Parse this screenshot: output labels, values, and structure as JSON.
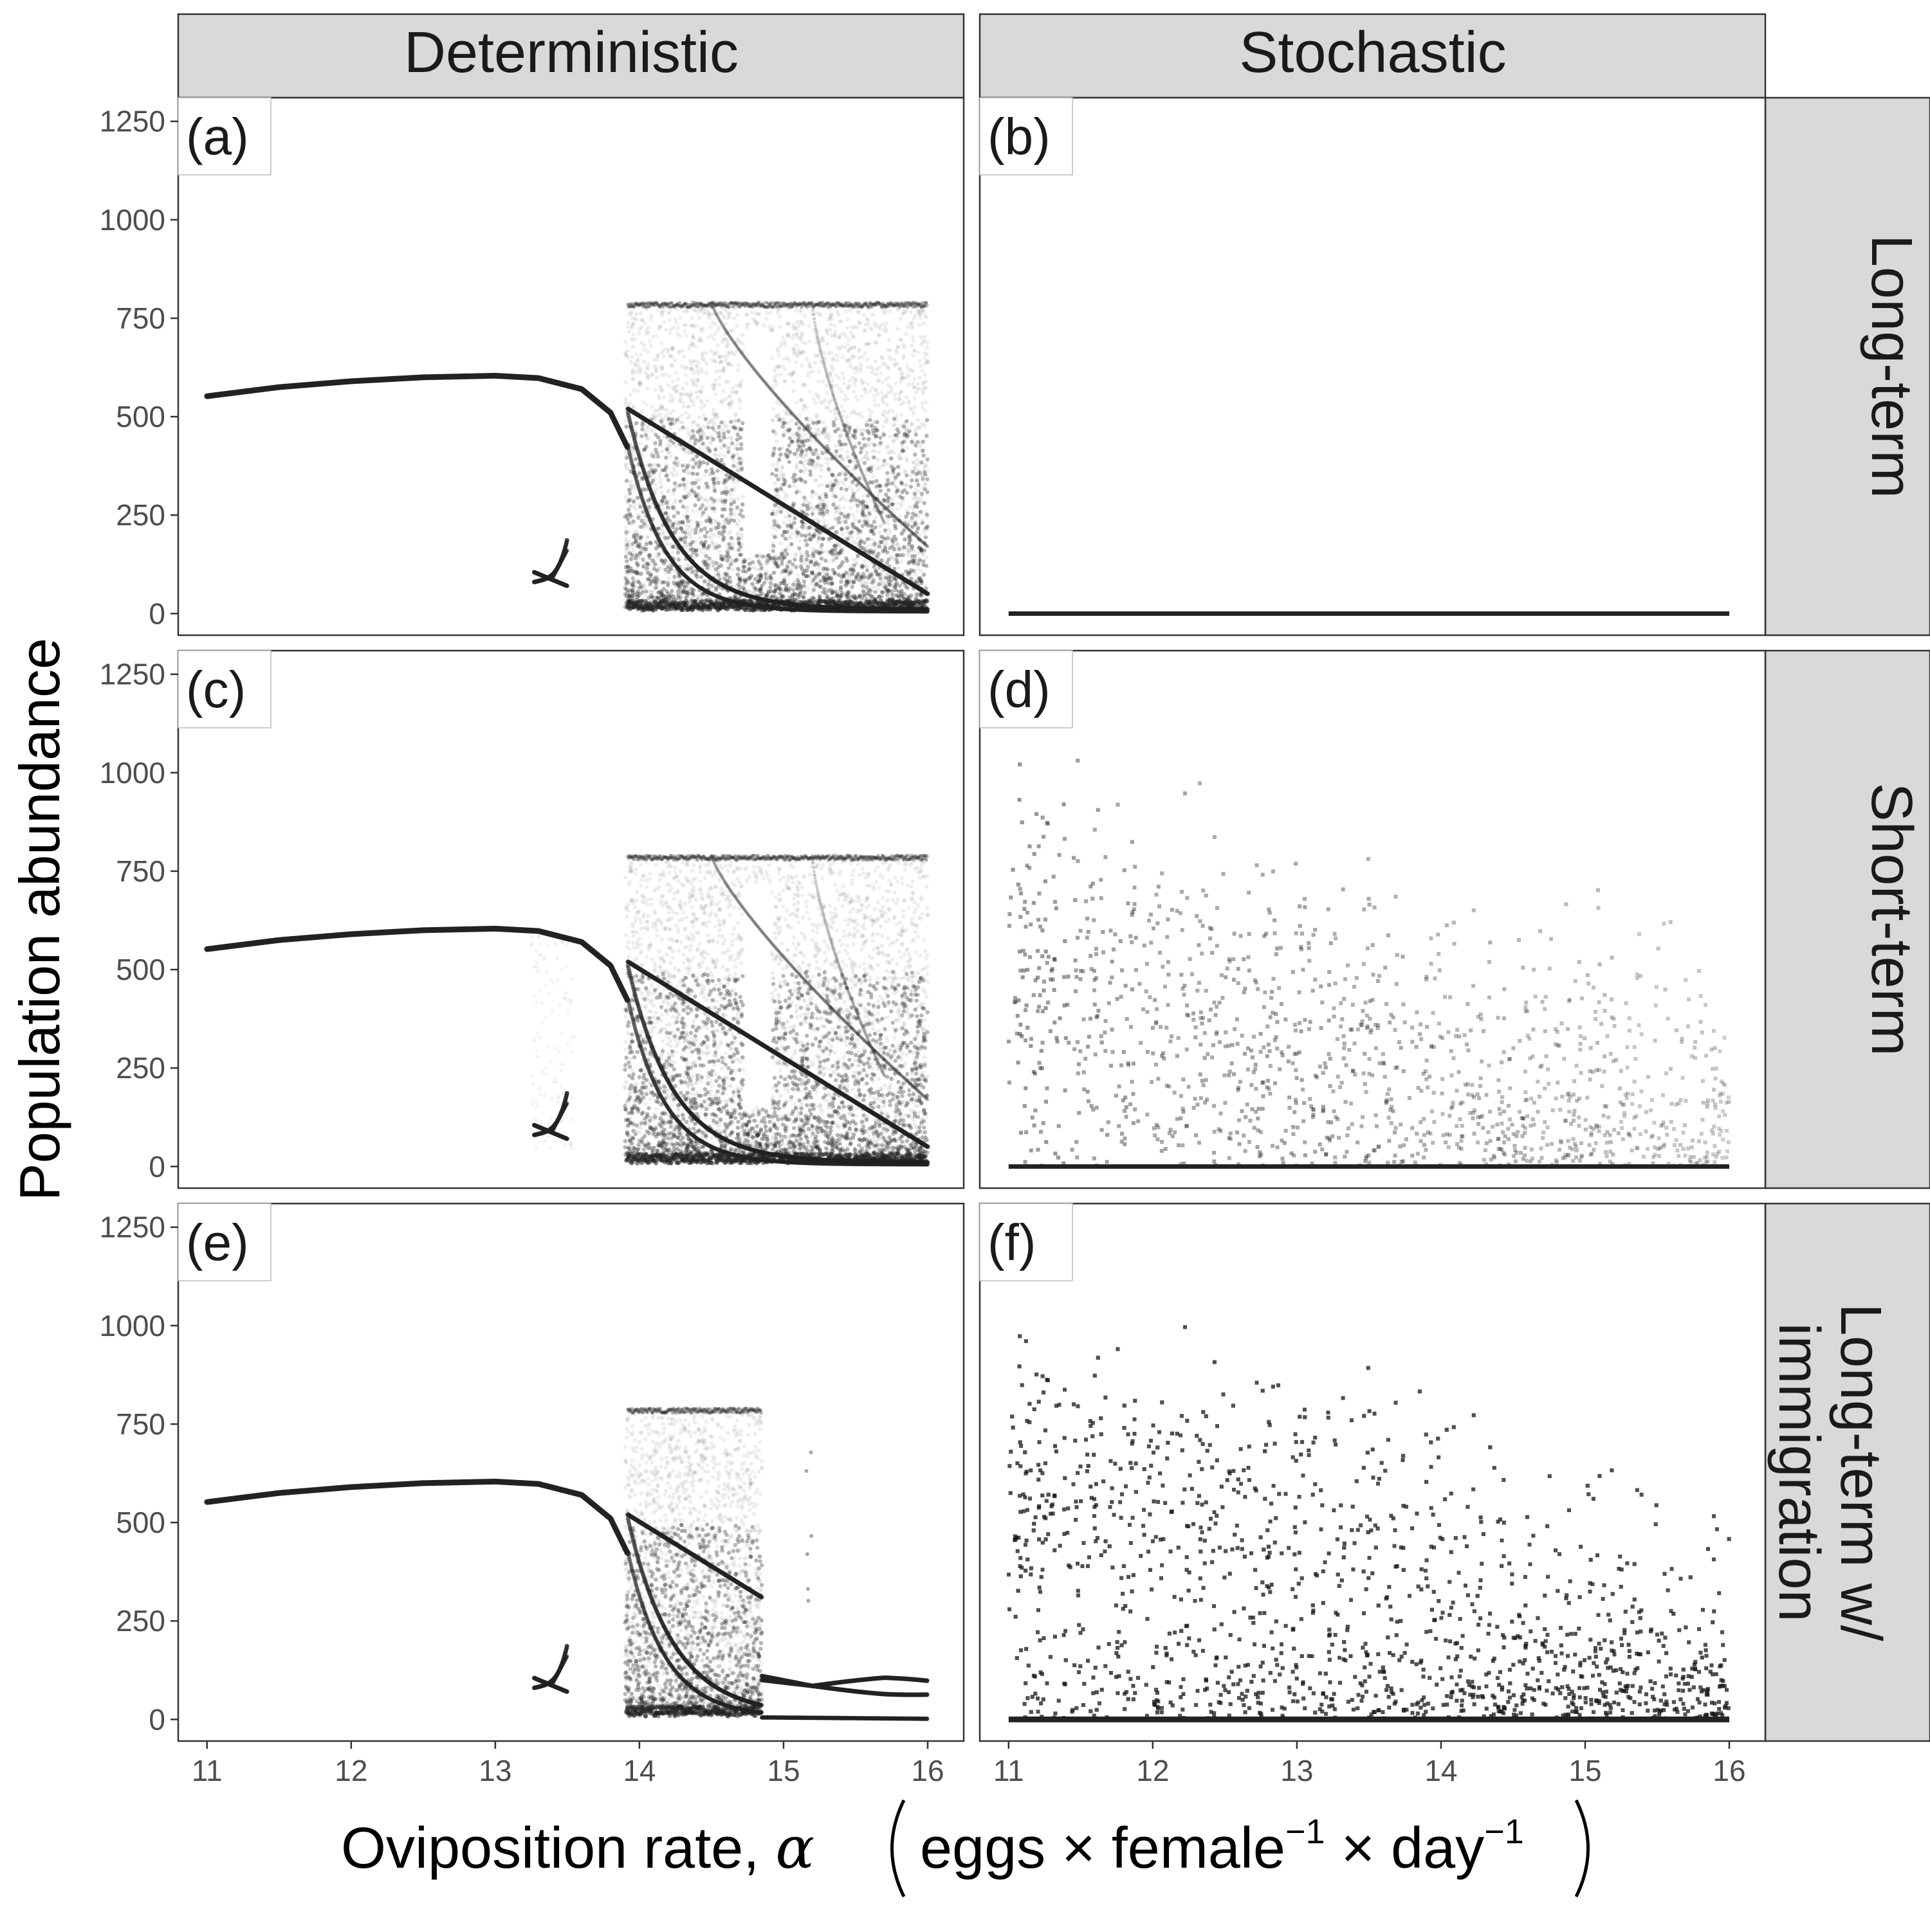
{
  "chart_data": {
    "type": "scatter",
    "facet_columns": [
      "Deterministic",
      "Stochastic"
    ],
    "facet_rows": [
      "Long-term",
      "Short-term",
      "Long-term w/\nimmigration"
    ],
    "xlabel": "Oviposition rate, α (eggs × female⁻¹ × day⁻¹)",
    "xlabel_parts": {
      "main": "Oviposition rate, ",
      "alpha": "α",
      "eggs": "eggs",
      "times": "×",
      "female": "female",
      "day": "day",
      "exp": "−1"
    },
    "ylabel": "Population abundance",
    "xlim": [
      10.8,
      16.25
    ],
    "ylim": [
      -55,
      1310
    ],
    "x_ticks": [
      11,
      12,
      13,
      14,
      15,
      16
    ],
    "y_ticks": [
      0,
      250,
      500,
      750,
      1000,
      1250
    ],
    "grid": false,
    "point_color": "#222222",
    "strip_color": "#d9d9d9",
    "panels": [
      {
        "tag": "(a)",
        "column": "Deterministic",
        "row": "Long-term",
        "mode": "det",
        "immigration": false,
        "faint_bubble": false
      },
      {
        "tag": "(b)",
        "column": "Stochastic",
        "row": "Long-term",
        "mode": "extinct"
      },
      {
        "tag": "(c)",
        "column": "Deterministic",
        "row": "Short-term",
        "mode": "det",
        "immigration": false,
        "faint_bubble": true
      },
      {
        "tag": "(d)",
        "column": "Stochastic",
        "row": "Short-term",
        "mode": "stoch-short"
      },
      {
        "tag": "(e)",
        "column": "Deterministic",
        "row": "Long-term w/\nimmigration",
        "mode": "det",
        "immigration": true,
        "faint_bubble": false
      },
      {
        "tag": "(f)",
        "column": "Stochastic",
        "row": "Long-term w/\nimmigration",
        "mode": "stoch-imm"
      }
    ],
    "series": {
      "stable_equilibrium": {
        "x": [
          11.0,
          11.5,
          12.0,
          12.5,
          13.0,
          13.3,
          13.6,
          13.8,
          13.92
        ],
        "y": [
          552,
          575,
          590,
          600,
          604,
          598,
          570,
          510,
          420
        ]
      },
      "small_cycle": {
        "x_range": [
          13.27,
          13.5
        ],
        "y_range": [
          70,
          200
        ]
      },
      "chaotic_band": {
        "x_range": [
          13.9,
          16.0
        ],
        "y_range": [
          0,
          790
        ]
      },
      "immigration_chaos_end": 14.85,
      "immigration_cycle": {
        "x": [
          14.85,
          15.2,
          15.6,
          16.0
        ],
        "upper": [
          110,
          85,
          110,
          95
        ],
        "lower": [
          5,
          3,
          2,
          1
        ]
      },
      "extinct_line": {
        "x": [
          11,
          16
        ],
        "y": [
          0,
          0
        ]
      }
    }
  }
}
